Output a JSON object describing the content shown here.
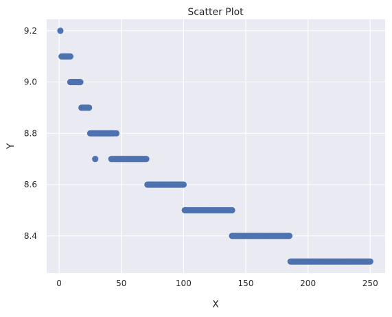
{
  "chart_data": {
    "type": "scatter",
    "title": "Scatter Plot",
    "xlabel": "X",
    "ylabel": "Y",
    "xlim": [
      -10,
      262
    ],
    "ylim": [
      8.255,
      9.245
    ],
    "xticks": [
      0,
      50,
      100,
      150,
      200,
      250
    ],
    "yticks": [
      8.4,
      8.6,
      8.8,
      9.0,
      9.2
    ],
    "yticks_labels": [
      "8.4",
      "8.6",
      "8.8",
      "9.0",
      "9.2"
    ],
    "grid": true,
    "background_color": "#eaeaf2",
    "grid_color": "#ffffff",
    "point_color": "#4c72b0",
    "runs": [
      {
        "y": 9.2,
        "x_from": 1,
        "x_to": 1
      },
      {
        "y": 9.1,
        "x_from": 2,
        "x_to": 9
      },
      {
        "y": 9.0,
        "x_from": 9,
        "x_to": 17
      },
      {
        "y": 8.9,
        "x_from": 18,
        "x_to": 24
      },
      {
        "y": 8.8,
        "x_from": 25,
        "x_to": 44
      },
      {
        "y": 8.8,
        "x_from": 46,
        "x_to": 46
      },
      {
        "y": 8.7,
        "x_from": 29,
        "x_to": 29
      },
      {
        "y": 8.7,
        "x_from": 42,
        "x_to": 70
      },
      {
        "y": 8.6,
        "x_from": 71,
        "x_to": 100
      },
      {
        "y": 8.5,
        "x_from": 101,
        "x_to": 139
      },
      {
        "y": 8.4,
        "x_from": 139,
        "x_to": 185
      },
      {
        "y": 8.3,
        "x_from": 186,
        "x_to": 250
      }
    ]
  }
}
